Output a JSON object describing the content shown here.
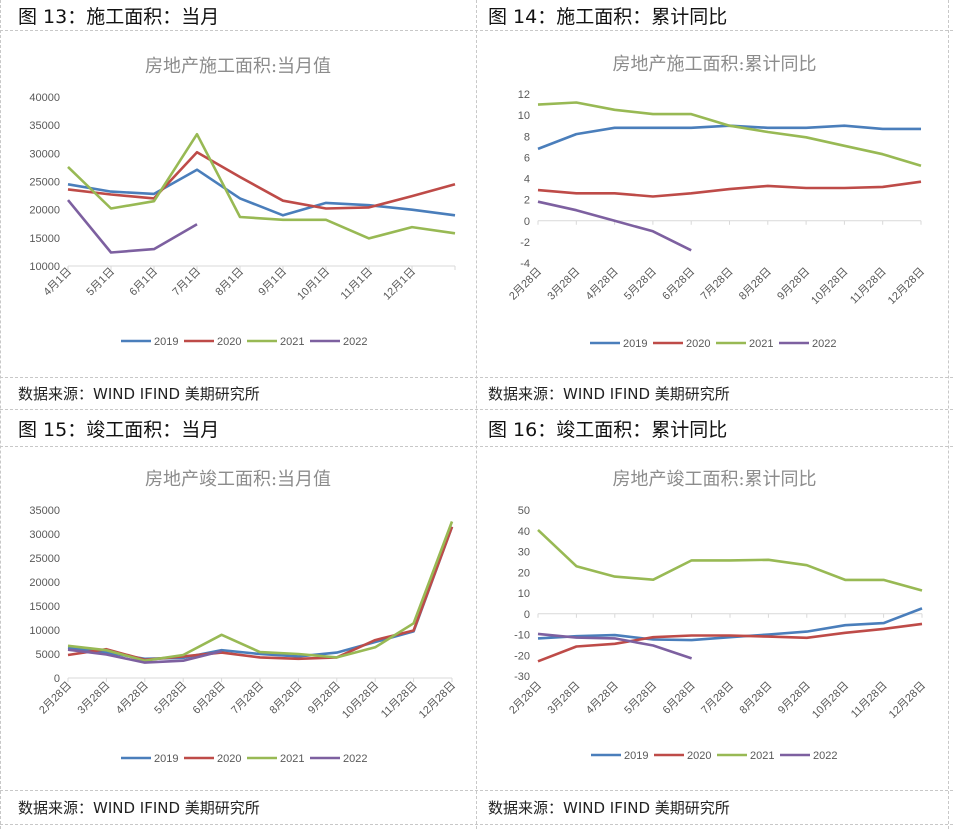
{
  "panels": [
    {
      "figure_title": "图 13：施工面积：当月",
      "source": "数据来源：WIND IFIND 美期研究所"
    },
    {
      "figure_title": "图 14：施工面积：累计同比",
      "source": "数据来源：WIND IFIND 美期研究所"
    },
    {
      "figure_title": "图 15：竣工面积：当月",
      "source": "数据来源：WIND IFIND 美期研究所"
    },
    {
      "figure_title": "图 16：竣工面积：累计同比",
      "source": "数据来源：WIND IFIND 美期研究所"
    }
  ],
  "series_colors": {
    "2019": "#4a7ebb",
    "2020": "#be4b48",
    "2021": "#98b954",
    "2022": "#7d60a0"
  },
  "chart_data": [
    {
      "type": "line",
      "title": "房地产施工面积:当月值",
      "xlabel": "",
      "ylabel": "",
      "categories": [
        "4月1日",
        "5月1日",
        "6月1日",
        "7月1日",
        "8月1日",
        "9月1日",
        "10月1日",
        "11月1日",
        "12月1日",
        ""
      ],
      "yticks": [
        "10000",
        "15000",
        "20000",
        "25000",
        "30000",
        "35000",
        "40000"
      ],
      "ylim": [
        10000,
        40000
      ],
      "grid": false,
      "legend": "bottom",
      "series": [
        {
          "name": "2019",
          "values": [
            24500,
            23200,
            22800,
            27100,
            22000,
            19000,
            21200,
            20800,
            20000,
            19000
          ]
        },
        {
          "name": "2020",
          "values": [
            23600,
            22700,
            22000,
            30200,
            25800,
            21600,
            20200,
            20400,
            22400,
            24500
          ]
        },
        {
          "name": "2021",
          "values": [
            27600,
            20200,
            21500,
            33400,
            18700,
            18200,
            18200,
            14900,
            16900,
            15800
          ]
        },
        {
          "name": "2022",
          "values": [
            21700,
            12400,
            13000,
            17400,
            null,
            null,
            null,
            null,
            null,
            null
          ]
        }
      ]
    },
    {
      "type": "line",
      "title": "房地产施工面积:累计同比",
      "xlabel": "",
      "ylabel": "",
      "categories": [
        "2月28日",
        "3月28日",
        "4月28日",
        "5月28日",
        "6月28日",
        "7月28日",
        "8月28日",
        "9月28日",
        "10月28日",
        "11月28日",
        "12月28日"
      ],
      "yticks": [
        "-4",
        "-2",
        "0",
        "2",
        "4",
        "6",
        "8",
        "10",
        "12"
      ],
      "ylim": [
        -4,
        12
      ],
      "grid": false,
      "legend": "bottom",
      "series": [
        {
          "name": "2019",
          "values": [
            6.8,
            8.2,
            8.8,
            8.8,
            8.8,
            9.0,
            8.8,
            8.8,
            9.0,
            8.7,
            8.7
          ]
        },
        {
          "name": "2020",
          "values": [
            2.9,
            2.6,
            2.6,
            2.3,
            2.6,
            3.0,
            3.3,
            3.1,
            3.1,
            3.2,
            3.7
          ]
        },
        {
          "name": "2021",
          "values": [
            11.0,
            11.2,
            10.5,
            10.1,
            10.1,
            9.0,
            8.4,
            7.9,
            7.1,
            6.3,
            5.2
          ]
        },
        {
          "name": "2022",
          "values": [
            1.8,
            1.0,
            0.0,
            -1.0,
            -2.8,
            null,
            null,
            null,
            null,
            null,
            null
          ]
        }
      ]
    },
    {
      "type": "line",
      "title": "房地产竣工面积:当月值",
      "xlabel": "",
      "ylabel": "",
      "categories": [
        "2月28日",
        "3月28日",
        "4月28日",
        "5月28日",
        "6月28日",
        "7月28日",
        "8月28日",
        "9月28日",
        "10月28日",
        "11月28日",
        "12月28日"
      ],
      "yticks": [
        "0",
        "5000",
        "10000",
        "15000",
        "20000",
        "25000",
        "30000",
        "35000"
      ],
      "ylim": [
        0,
        35000
      ],
      "grid": false,
      "legend": "bottom",
      "series": [
        {
          "name": "2019",
          "values": [
            6300,
            5300,
            4000,
            4200,
            5800,
            5000,
            4500,
            5300,
            7500,
            9700,
            31500
          ]
        },
        {
          "name": "2020",
          "values": [
            4800,
            6000,
            3800,
            4500,
            5300,
            4300,
            4000,
            4300,
            7900,
            9900,
            31500
          ]
        },
        {
          "name": "2021",
          "values": [
            6700,
            5800,
            3600,
            4800,
            9000,
            5400,
            5000,
            4300,
            6400,
            11400,
            32600
          ]
        },
        {
          "name": "2022",
          "values": [
            5900,
            4900,
            3200,
            3600,
            5600,
            null,
            null,
            null,
            null,
            null,
            null
          ]
        }
      ]
    },
    {
      "type": "line",
      "title": "房地产竣工面积:累计同比",
      "xlabel": "",
      "ylabel": "",
      "categories": [
        "2月28日",
        "3月28日",
        "4月28日",
        "5月28日",
        "6月28日",
        "7月28日",
        "8月28日",
        "9月28日",
        "10月28日",
        "11月28日",
        "12月28日"
      ],
      "yticks": [
        "-30",
        "-20",
        "-10",
        "0",
        "10",
        "20",
        "30",
        "40",
        "50"
      ],
      "ylim": [
        -30,
        50
      ],
      "grid": false,
      "legend": "bottom",
      "series": [
        {
          "name": "2019",
          "values": [
            -11.9,
            -10.8,
            -10.3,
            -12.4,
            -12.7,
            -11.3,
            -10.0,
            -8.6,
            -5.5,
            -4.5,
            2.6
          ]
        },
        {
          "name": "2020",
          "values": [
            -22.9,
            -15.8,
            -14.5,
            -11.3,
            -10.5,
            -10.5,
            -11.0,
            -11.6,
            -9.2,
            -7.3,
            -4.9
          ]
        },
        {
          "name": "2021",
          "values": [
            40.4,
            22.9,
            17.9,
            16.4,
            25.7,
            25.7,
            26.0,
            23.4,
            16.3,
            16.3,
            11.2
          ]
        },
        {
          "name": "2022",
          "values": [
            -9.7,
            -11.5,
            -11.9,
            -15.3,
            -21.5,
            null,
            null,
            null,
            null,
            null,
            null
          ]
        }
      ]
    }
  ]
}
